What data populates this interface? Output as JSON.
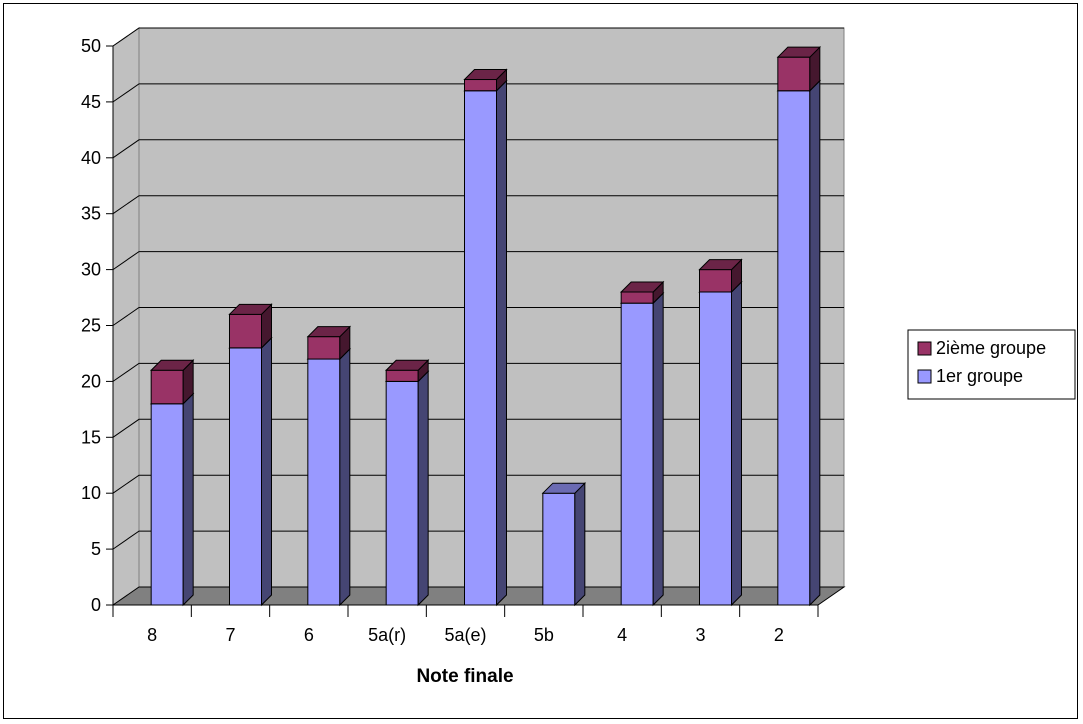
{
  "chart_data": {
    "type": "bar",
    "stacked": true,
    "three_d": true,
    "title": "",
    "xlabel": "Note finale",
    "ylabel": "",
    "categories": [
      "8",
      "7",
      "6",
      "5a(r)",
      "5a(e)",
      "5b",
      "4",
      "3",
      "2"
    ],
    "series": [
      {
        "name": "1er groupe",
        "values": [
          18,
          23,
          22,
          20,
          46,
          10,
          27,
          28,
          46
        ],
        "color": "#9999ff"
      },
      {
        "name": "2ième groupe",
        "values": [
          3,
          3,
          2,
          1,
          1,
          0,
          1,
          2,
          3
        ],
        "color": "#993366"
      }
    ],
    "ylim": [
      0,
      50
    ],
    "yticks": [
      0,
      5,
      10,
      15,
      20,
      25,
      30,
      35,
      40,
      45,
      50
    ],
    "grid": true,
    "legend_position": "right",
    "wall_color": "#c0c0c0",
    "floor_color": "#808080"
  }
}
